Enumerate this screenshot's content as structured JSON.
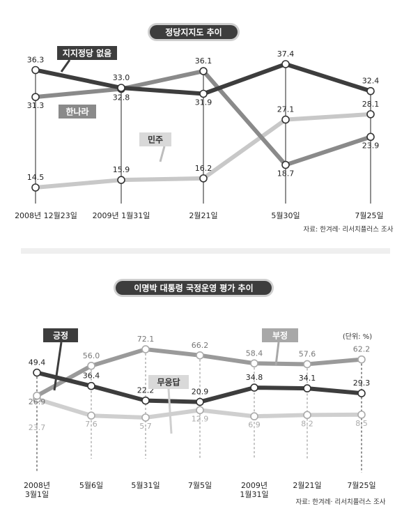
{
  "chart_data": [
    {
      "type": "line",
      "title": "정당지지도 추이",
      "categories": [
        "2008년 12월23일",
        "2009년 1월31일",
        "2월21일",
        "5월30일",
        "7월25일"
      ],
      "series": [
        {
          "name": "지지정당 없음",
          "values": [
            36.3,
            33.0,
            31.9,
            37.4,
            32.4
          ],
          "color": "#3d3d3d"
        },
        {
          "name": "한나라",
          "values": [
            31.3,
            32.8,
            36.1,
            18.7,
            23.9
          ],
          "color": "#8a8a8a"
        },
        {
          "name": "민주",
          "values": [
            14.5,
            15.9,
            16.2,
            27.1,
            28.1
          ],
          "color": "#c8c8c8"
        }
      ],
      "value_labels": [
        [
          "36.3",
          "33.0",
          "31.9",
          "37.4",
          "32.4"
        ],
        [
          "31.3",
          "32.8",
          "36.1",
          "18.7",
          "23.9"
        ],
        [
          "14.5",
          "15.9",
          "16.2",
          "27.1",
          "28.1"
        ]
      ],
      "source": "자료: 한겨레· 리서치플러스 조사",
      "grid": false
    },
    {
      "type": "line",
      "title": "이명박 대통령 국정운영 평가 추이",
      "categories": [
        "2008년 3월1일",
        "5월6일",
        "5월31일",
        "7월5일",
        "2009년 1월31일",
        "2월21일",
        "7월25일"
      ],
      "series": [
        {
          "name": "긍정",
          "values": [
            49.4,
            36.4,
            22.2,
            20.9,
            34.8,
            34.1,
            29.3
          ],
          "color": "#3d3d3d"
        },
        {
          "name": "부정",
          "values": [
            26.9,
            56.0,
            72.1,
            66.2,
            58.4,
            57.6,
            62.2
          ],
          "color": "#9a9a9a"
        },
        {
          "name": "무응답",
          "values": [
            23.7,
            7.6,
            5.7,
            12.9,
            6.9,
            8.2,
            8.5
          ],
          "color": "#cfcfcf"
        }
      ],
      "value_labels": [
        [
          "49.4",
          "36.4",
          "22.2",
          "20.9",
          "34.8",
          "34.1",
          "29.3"
        ],
        [
          "26.9",
          "56.0",
          "72.1",
          "66.2",
          "58.4",
          "57.6",
          "62.2"
        ],
        [
          "23.7",
          "7.6",
          "5.7",
          "12.9",
          "6.9",
          "8.2",
          "8.5"
        ]
      ],
      "unit": "(단위: %)",
      "source": "자료: 한겨레· 리서치플러스 조사",
      "grid": false
    }
  ]
}
